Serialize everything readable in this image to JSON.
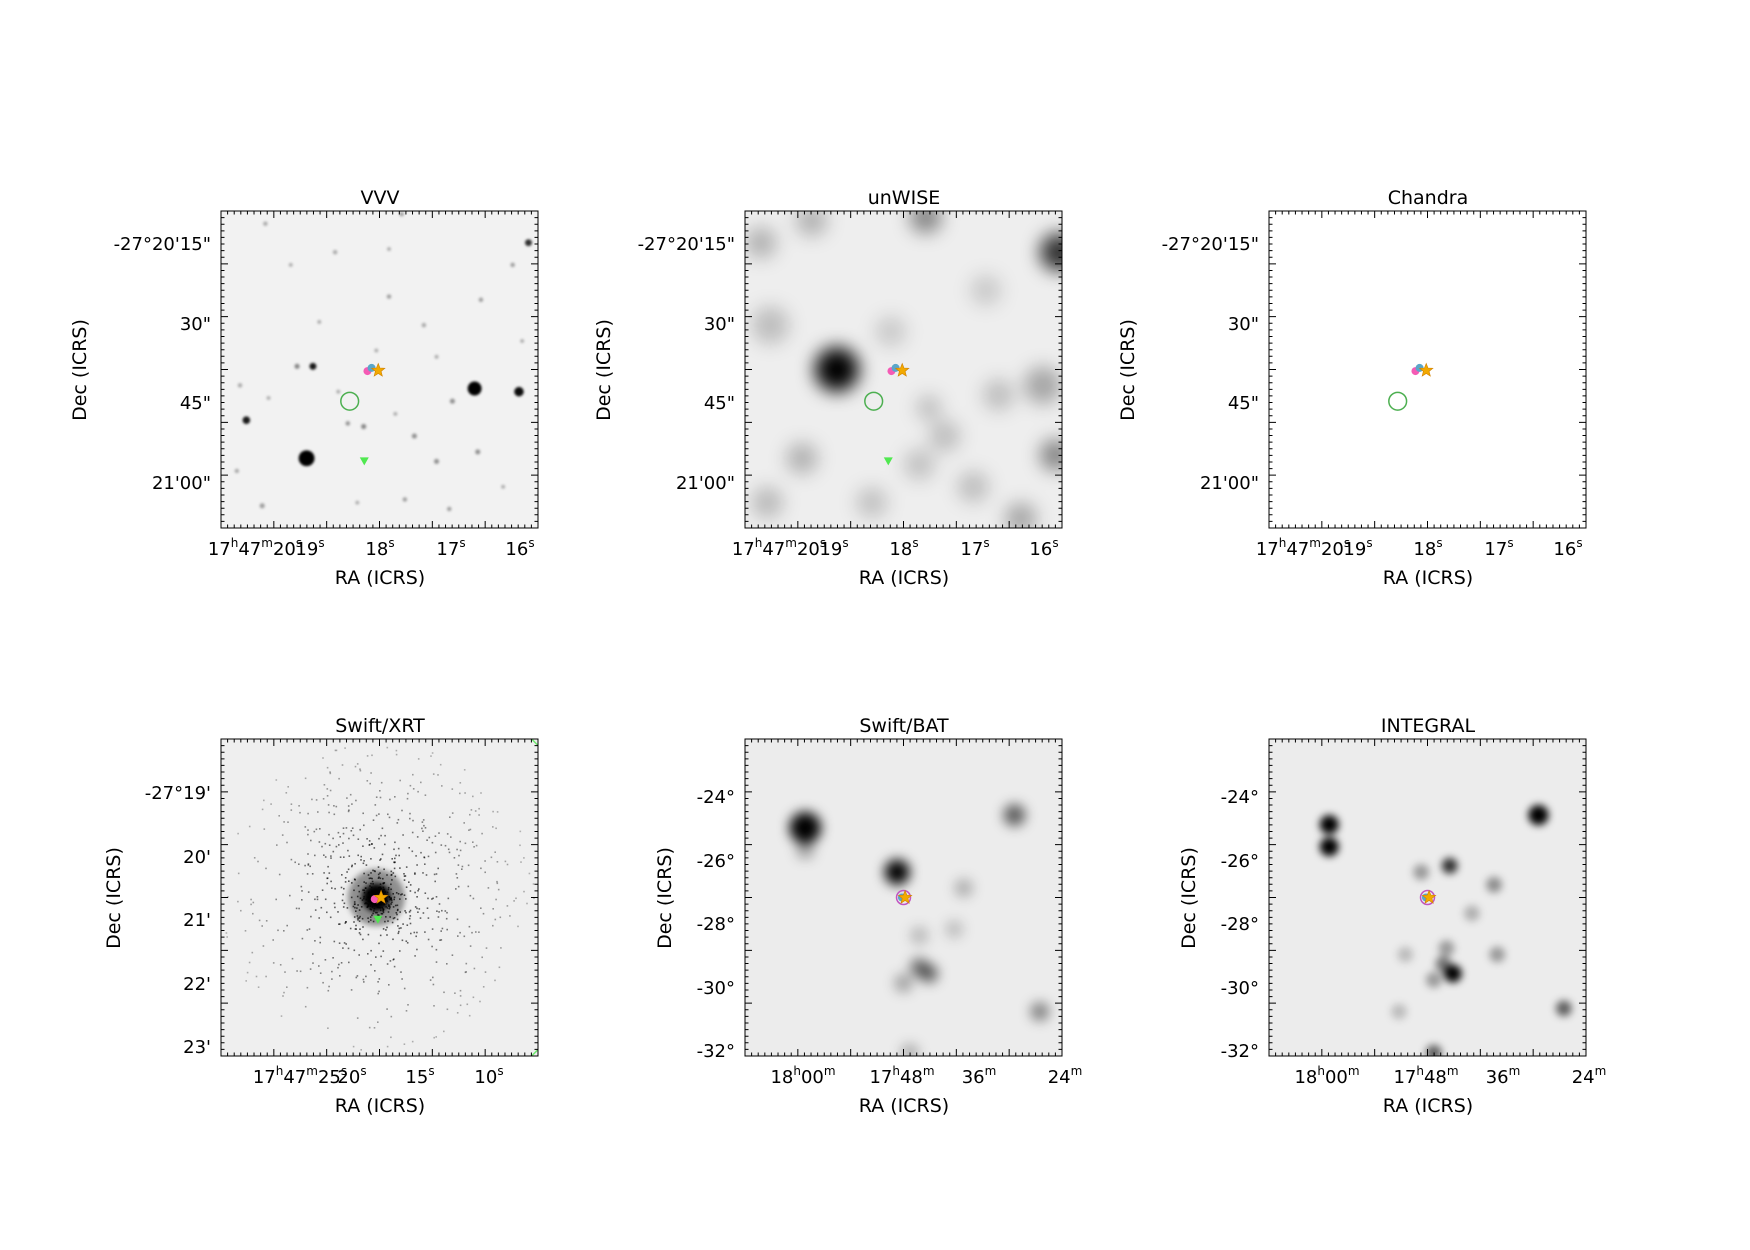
{
  "chart_data": [
    {
      "type": "image",
      "title": "VVV",
      "xlabel": "RA (ICRS)",
      "ylabel": "Dec (ICRS)",
      "background": "#f2f2f2",
      "blur": 1.2,
      "x_ticks": [
        "17h47m20s",
        "19s",
        "18s",
        "17s",
        "16s"
      ],
      "y_ticks": [
        "-27°20'15\"",
        "30\"",
        "45\"",
        "21'00\""
      ],
      "sources": [
        {
          "x": 0.27,
          "y": 0.78,
          "r": 0.025,
          "a": 1.0
        },
        {
          "x": 0.8,
          "y": 0.56,
          "r": 0.022,
          "a": 1.0
        },
        {
          "x": 0.94,
          "y": 0.57,
          "r": 0.015,
          "a": 0.95
        },
        {
          "x": 0.08,
          "y": 0.66,
          "r": 0.012,
          "a": 0.9
        },
        {
          "x": 0.29,
          "y": 0.49,
          "r": 0.011,
          "a": 0.9
        },
        {
          "x": 0.97,
          "y": 0.1,
          "r": 0.011,
          "a": 0.8
        },
        {
          "x": 0.24,
          "y": 0.49,
          "r": 0.008,
          "a": 0.45
        },
        {
          "x": 0.45,
          "y": 0.68,
          "r": 0.008,
          "a": 0.45
        },
        {
          "x": 0.13,
          "y": 0.93,
          "r": 0.008,
          "a": 0.35
        },
        {
          "x": 0.61,
          "y": 0.71,
          "r": 0.008,
          "a": 0.4
        },
        {
          "x": 0.73,
          "y": 0.6,
          "r": 0.008,
          "a": 0.4
        },
        {
          "x": 0.82,
          "y": 0.28,
          "r": 0.007,
          "a": 0.35
        },
        {
          "x": 0.92,
          "y": 0.17,
          "r": 0.007,
          "a": 0.35
        },
        {
          "x": 0.68,
          "y": 0.79,
          "r": 0.008,
          "a": 0.4
        },
        {
          "x": 0.53,
          "y": 0.27,
          "r": 0.007,
          "a": 0.35
        },
        {
          "x": 0.06,
          "y": 0.55,
          "r": 0.007,
          "a": 0.3
        },
        {
          "x": 0.4,
          "y": 0.67,
          "r": 0.007,
          "a": 0.4
        },
        {
          "x": 0.64,
          "y": 0.36,
          "r": 0.007,
          "a": 0.3
        },
        {
          "x": 0.81,
          "y": 0.76,
          "r": 0.008,
          "a": 0.4
        },
        {
          "x": 0.36,
          "y": 0.13,
          "r": 0.007,
          "a": 0.3
        },
        {
          "x": 0.05,
          "y": 0.82,
          "r": 0.007,
          "a": 0.3
        },
        {
          "x": 0.72,
          "y": 0.94,
          "r": 0.007,
          "a": 0.35
        },
        {
          "x": 0.58,
          "y": 0.91,
          "r": 0.007,
          "a": 0.35
        },
        {
          "x": 0.14,
          "y": 0.04,
          "r": 0.007,
          "a": 0.3
        },
        {
          "x": 0.57,
          "y": 0.01,
          "r": 0.007,
          "a": 0.35
        },
        {
          "x": 0.43,
          "y": 0.92,
          "r": 0.006,
          "a": 0.3
        },
        {
          "x": 0.49,
          "y": 0.44,
          "r": 0.006,
          "a": 0.3
        },
        {
          "x": 0.22,
          "y": 0.17,
          "r": 0.006,
          "a": 0.3
        },
        {
          "x": 0.37,
          "y": 0.57,
          "r": 0.006,
          "a": 0.3
        },
        {
          "x": 0.89,
          "y": 0.87,
          "r": 0.006,
          "a": 0.3
        },
        {
          "x": 0.31,
          "y": 0.35,
          "r": 0.006,
          "a": 0.3
        },
        {
          "x": 0.15,
          "y": 0.59,
          "r": 0.006,
          "a": 0.3
        },
        {
          "x": 0.55,
          "y": 0.64,
          "r": 0.006,
          "a": 0.3
        },
        {
          "x": 0.68,
          "y": 0.46,
          "r": 0.006,
          "a": 0.3
        },
        {
          "x": 0.95,
          "y": 0.41,
          "r": 0.006,
          "a": 0.3
        },
        {
          "x": 0.53,
          "y": 0.12,
          "r": 0.006,
          "a": 0.3
        }
      ],
      "markers": [
        {
          "kind": "circle",
          "x": 0.406,
          "y": 0.6,
          "r": 0.028,
          "color": "#4caf50"
        },
        {
          "kind": "triangle",
          "x": 0.452,
          "y": 0.79,
          "color": "#50e850"
        },
        {
          "kind": "dot",
          "x": 0.462,
          "y": 0.505,
          "color": "#f45bb5"
        },
        {
          "kind": "dot",
          "x": 0.475,
          "y": 0.495,
          "color": "#5aa6c9"
        },
        {
          "kind": "star",
          "x": 0.496,
          "y": 0.503,
          "color": "#f2a900"
        }
      ]
    },
    {
      "type": "image",
      "title": "unWISE",
      "xlabel": "RA (ICRS)",
      "ylabel": "Dec (ICRS)",
      "background": "#eeeeee",
      "blur": 9,
      "x_ticks": [
        "17h47m20s",
        "19s",
        "18s",
        "17s",
        "16s"
      ],
      "y_ticks": [
        "-27°20'15\"",
        "30\"",
        "45\"",
        "21'00\""
      ],
      "sources": [
        {
          "x": 0.29,
          "y": 0.5,
          "r": 0.07,
          "a": 1.0
        },
        {
          "x": 0.99,
          "y": 0.13,
          "r": 0.06,
          "a": 0.8
        },
        {
          "x": 0.57,
          "y": 0.02,
          "r": 0.05,
          "a": 0.45
        },
        {
          "x": 0.08,
          "y": 0.36,
          "r": 0.06,
          "a": 0.2
        },
        {
          "x": 0.94,
          "y": 0.55,
          "r": 0.06,
          "a": 0.3
        },
        {
          "x": 0.98,
          "y": 0.77,
          "r": 0.05,
          "a": 0.45
        },
        {
          "x": 0.18,
          "y": 0.78,
          "r": 0.05,
          "a": 0.25
        },
        {
          "x": 0.87,
          "y": 0.97,
          "r": 0.05,
          "a": 0.3
        },
        {
          "x": 0.21,
          "y": 0.03,
          "r": 0.05,
          "a": 0.25
        },
        {
          "x": 0.72,
          "y": 0.87,
          "r": 0.05,
          "a": 0.2
        },
        {
          "x": 0.63,
          "y": 0.71,
          "r": 0.05,
          "a": 0.2
        },
        {
          "x": 0.55,
          "y": 0.8,
          "r": 0.05,
          "a": 0.18
        },
        {
          "x": 0.4,
          "y": 0.92,
          "r": 0.05,
          "a": 0.18
        },
        {
          "x": 0.07,
          "y": 0.92,
          "r": 0.05,
          "a": 0.22
        },
        {
          "x": 0.46,
          "y": 0.38,
          "r": 0.05,
          "a": 0.15
        },
        {
          "x": 0.76,
          "y": 0.25,
          "r": 0.05,
          "a": 0.15
        },
        {
          "x": 0.05,
          "y": 0.1,
          "r": 0.05,
          "a": 0.25
        },
        {
          "x": 0.58,
          "y": 0.62,
          "r": 0.04,
          "a": 0.2
        },
        {
          "x": 0.8,
          "y": 0.58,
          "r": 0.05,
          "a": 0.2
        }
      ],
      "markers": [
        {
          "kind": "circle",
          "x": 0.406,
          "y": 0.6,
          "r": 0.028,
          "color": "#4caf50"
        },
        {
          "kind": "triangle",
          "x": 0.452,
          "y": 0.79,
          "color": "#50e850"
        },
        {
          "kind": "dot",
          "x": 0.462,
          "y": 0.505,
          "color": "#f45bb5"
        },
        {
          "kind": "dot",
          "x": 0.475,
          "y": 0.495,
          "color": "#5aa6c9"
        },
        {
          "kind": "star",
          "x": 0.496,
          "y": 0.503,
          "color": "#f2a900"
        }
      ]
    },
    {
      "type": "image",
      "title": "Chandra",
      "xlabel": "RA (ICRS)",
      "ylabel": "Dec (ICRS)",
      "background": "#ffffff",
      "blur": 0,
      "x_ticks": [
        "17h47m20s",
        "19s",
        "18s",
        "17s",
        "16s"
      ],
      "y_ticks": [
        "-27°20'15\"",
        "30\"",
        "45\"",
        "21'00\""
      ],
      "sources": [],
      "markers": [
        {
          "kind": "circle",
          "x": 0.406,
          "y": 0.6,
          "r": 0.028,
          "color": "#4caf50"
        },
        {
          "kind": "dot",
          "x": 0.462,
          "y": 0.505,
          "color": "#f45bb5"
        },
        {
          "kind": "dot",
          "x": 0.475,
          "y": 0.495,
          "color": "#5aa6c9"
        },
        {
          "kind": "star",
          "x": 0.496,
          "y": 0.503,
          "color": "#f2a900"
        }
      ]
    },
    {
      "type": "image",
      "title": "Swift/XRT",
      "xlabel": "RA (ICRS)",
      "ylabel": "Dec (ICRS)",
      "background": "#efefef",
      "blur": 3,
      "x_ticks": [
        "17h47m25s",
        "20s",
        "15s",
        "10s"
      ],
      "y_ticks": [
        "-27°19'",
        "20'",
        "21'",
        "22'",
        "23'"
      ],
      "sources": [
        {
          "x": 0.49,
          "y": 0.5,
          "r": 0.09,
          "a": 0.4
        },
        {
          "x": 0.49,
          "y": 0.5,
          "r": 0.045,
          "a": 1.0
        }
      ],
      "noise": true,
      "markers": [
        {
          "kind": "arc",
          "x": 0.49,
          "y": 0.5,
          "r": 0.7,
          "color": "#6fe86f"
        },
        {
          "kind": "triangle",
          "x": 0.495,
          "y": 0.57,
          "color": "#50e850"
        },
        {
          "kind": "dot",
          "x": 0.485,
          "y": 0.505,
          "color": "#f45bb5"
        },
        {
          "kind": "star",
          "x": 0.505,
          "y": 0.5,
          "color": "#f2a900"
        }
      ]
    },
    {
      "type": "image",
      "title": "Swift/BAT",
      "xlabel": "RA (ICRS)",
      "ylabel": "Dec (ICRS)",
      "background": "#ececec",
      "blur": 6,
      "x_ticks": [
        "18h00m",
        "17h48m",
        "36m",
        "24m"
      ],
      "y_ticks": [
        "-24°",
        "-26°",
        "-28°",
        "-30°",
        "-32°"
      ],
      "sources": [
        {
          "x": 0.19,
          "y": 0.28,
          "r": 0.05,
          "a": 1.0
        },
        {
          "x": 0.48,
          "y": 0.42,
          "r": 0.04,
          "a": 1.0
        },
        {
          "x": 0.85,
          "y": 0.24,
          "r": 0.035,
          "a": 0.6
        },
        {
          "x": 0.19,
          "y": 0.35,
          "r": 0.03,
          "a": 0.3
        },
        {
          "x": 0.55,
          "y": 0.72,
          "r": 0.03,
          "a": 0.5
        },
        {
          "x": 0.58,
          "y": 0.74,
          "r": 0.03,
          "a": 0.55
        },
        {
          "x": 0.5,
          "y": 0.77,
          "r": 0.03,
          "a": 0.3
        },
        {
          "x": 0.69,
          "y": 0.47,
          "r": 0.03,
          "a": 0.25
        },
        {
          "x": 0.93,
          "y": 0.86,
          "r": 0.03,
          "a": 0.45
        },
        {
          "x": 0.55,
          "y": 0.62,
          "r": 0.03,
          "a": 0.2
        },
        {
          "x": 0.66,
          "y": 0.6,
          "r": 0.03,
          "a": 0.18
        },
        {
          "x": 0.52,
          "y": 0.99,
          "r": 0.03,
          "a": 0.25
        }
      ],
      "markers": [
        {
          "kind": "ring",
          "x": 0.5,
          "y": 0.5,
          "r": 0.022,
          "color": "#c154c1"
        },
        {
          "kind": "dot",
          "x": 0.495,
          "y": 0.5,
          "color": "#5aa6c9"
        },
        {
          "kind": "star",
          "x": 0.505,
          "y": 0.5,
          "color": "#f2a900"
        }
      ]
    },
    {
      "type": "image",
      "title": "INTEGRAL",
      "xlabel": "RA (ICRS)",
      "ylabel": "Dec (ICRS)",
      "background": "#ececec",
      "blur": 4,
      "x_ticks": [
        "18h00m",
        "17h48m",
        "36m",
        "24m"
      ],
      "y_ticks": [
        "-24°",
        "-26°",
        "-28°",
        "-30°",
        "-32°"
      ],
      "sources": [
        {
          "x": 0.19,
          "y": 0.27,
          "r": 0.03,
          "a": 1.0
        },
        {
          "x": 0.19,
          "y": 0.34,
          "r": 0.03,
          "a": 1.0
        },
        {
          "x": 0.85,
          "y": 0.24,
          "r": 0.032,
          "a": 1.0
        },
        {
          "x": 0.57,
          "y": 0.4,
          "r": 0.025,
          "a": 0.8
        },
        {
          "x": 0.58,
          "y": 0.74,
          "r": 0.028,
          "a": 1.0
        },
        {
          "x": 0.48,
          "y": 0.42,
          "r": 0.025,
          "a": 0.35
        },
        {
          "x": 0.55,
          "y": 0.71,
          "r": 0.025,
          "a": 0.5
        },
        {
          "x": 0.56,
          "y": 0.66,
          "r": 0.025,
          "a": 0.35
        },
        {
          "x": 0.52,
          "y": 0.76,
          "r": 0.025,
          "a": 0.35
        },
        {
          "x": 0.71,
          "y": 0.46,
          "r": 0.025,
          "a": 0.4
        },
        {
          "x": 0.72,
          "y": 0.68,
          "r": 0.025,
          "a": 0.35
        },
        {
          "x": 0.93,
          "y": 0.85,
          "r": 0.025,
          "a": 0.6
        },
        {
          "x": 0.52,
          "y": 0.99,
          "r": 0.025,
          "a": 0.6
        },
        {
          "x": 0.64,
          "y": 0.55,
          "r": 0.025,
          "a": 0.25
        },
        {
          "x": 0.43,
          "y": 0.68,
          "r": 0.025,
          "a": 0.2
        },
        {
          "x": 0.41,
          "y": 0.86,
          "r": 0.025,
          "a": 0.2
        }
      ],
      "markers": [
        {
          "kind": "ring",
          "x": 0.5,
          "y": 0.5,
          "r": 0.022,
          "color": "#c154c1"
        },
        {
          "kind": "dot",
          "x": 0.495,
          "y": 0.5,
          "color": "#5aa6c9"
        },
        {
          "kind": "star",
          "x": 0.505,
          "y": 0.5,
          "color": "#f2a900"
        }
      ]
    }
  ]
}
